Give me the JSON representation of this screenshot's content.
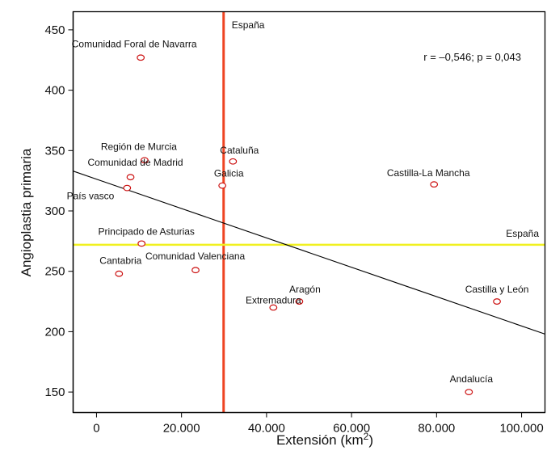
{
  "chart_data": {
    "type": "scatter",
    "title": "",
    "xlabel": "Extensión (km",
    "xlabel_sup": "2",
    "xlabel_suffix": ")",
    "ylabel": "Angioplastia primaria",
    "xlim": [
      -5500,
      105500
    ],
    "ylim": [
      133,
      465
    ],
    "x_ticks": [
      0,
      20000,
      40000,
      60000,
      80000,
      100000
    ],
    "x_tick_labels": [
      "0",
      "20.000",
      "40.000",
      "60.000",
      "80.000",
      "100.000"
    ],
    "y_ticks": [
      150,
      200,
      250,
      300,
      350,
      400,
      450
    ],
    "y_tick_labels": [
      "150",
      "200",
      "250",
      "300",
      "350",
      "400",
      "450"
    ],
    "grid": false,
    "legend": "none",
    "annotation": "r = –0,546; p = 0,043",
    "colors": {
      "points": "#cc1111",
      "regression": "#000000",
      "vertical_ref": "#ee4422",
      "horizontal_ref": "#f0f020"
    },
    "regression_line": {
      "x": [
        -5500,
        105500
      ],
      "y": [
        333,
        198
      ]
    },
    "reference_lines": [
      {
        "orientation": "vertical",
        "value": 29900,
        "label": "España"
      },
      {
        "orientation": "horizontal",
        "value": 272,
        "label": "España"
      }
    ],
    "points": [
      {
        "label": "Comunidad Foral de Navarra",
        "x": 10400,
        "y": 427
      },
      {
        "label": "Región de Murcia",
        "x": 11300,
        "y": 342
      },
      {
        "label": "Comunidad de Madrid",
        "x": 8000,
        "y": 328
      },
      {
        "label": "País vasco",
        "x": 7200,
        "y": 319
      },
      {
        "label": "Cataluña",
        "x": 32100,
        "y": 341
      },
      {
        "label": "Galicia",
        "x": 29600,
        "y": 321
      },
      {
        "label": "Castilla-La Mancha",
        "x": 79400,
        "y": 322
      },
      {
        "label": "Principado de Asturias",
        "x": 10600,
        "y": 273
      },
      {
        "label": "Cantabria",
        "x": 5300,
        "y": 248
      },
      {
        "label": "Comunidad Valenciana",
        "x": 23300,
        "y": 251
      },
      {
        "label": "Extremadura",
        "x": 41600,
        "y": 220
      },
      {
        "label": "Aragón",
        "x": 47700,
        "y": 225
      },
      {
        "label": "Castilla y León",
        "x": 94200,
        "y": 225
      },
      {
        "label": "Andalucía",
        "x": 87600,
        "y": 150
      }
    ]
  }
}
